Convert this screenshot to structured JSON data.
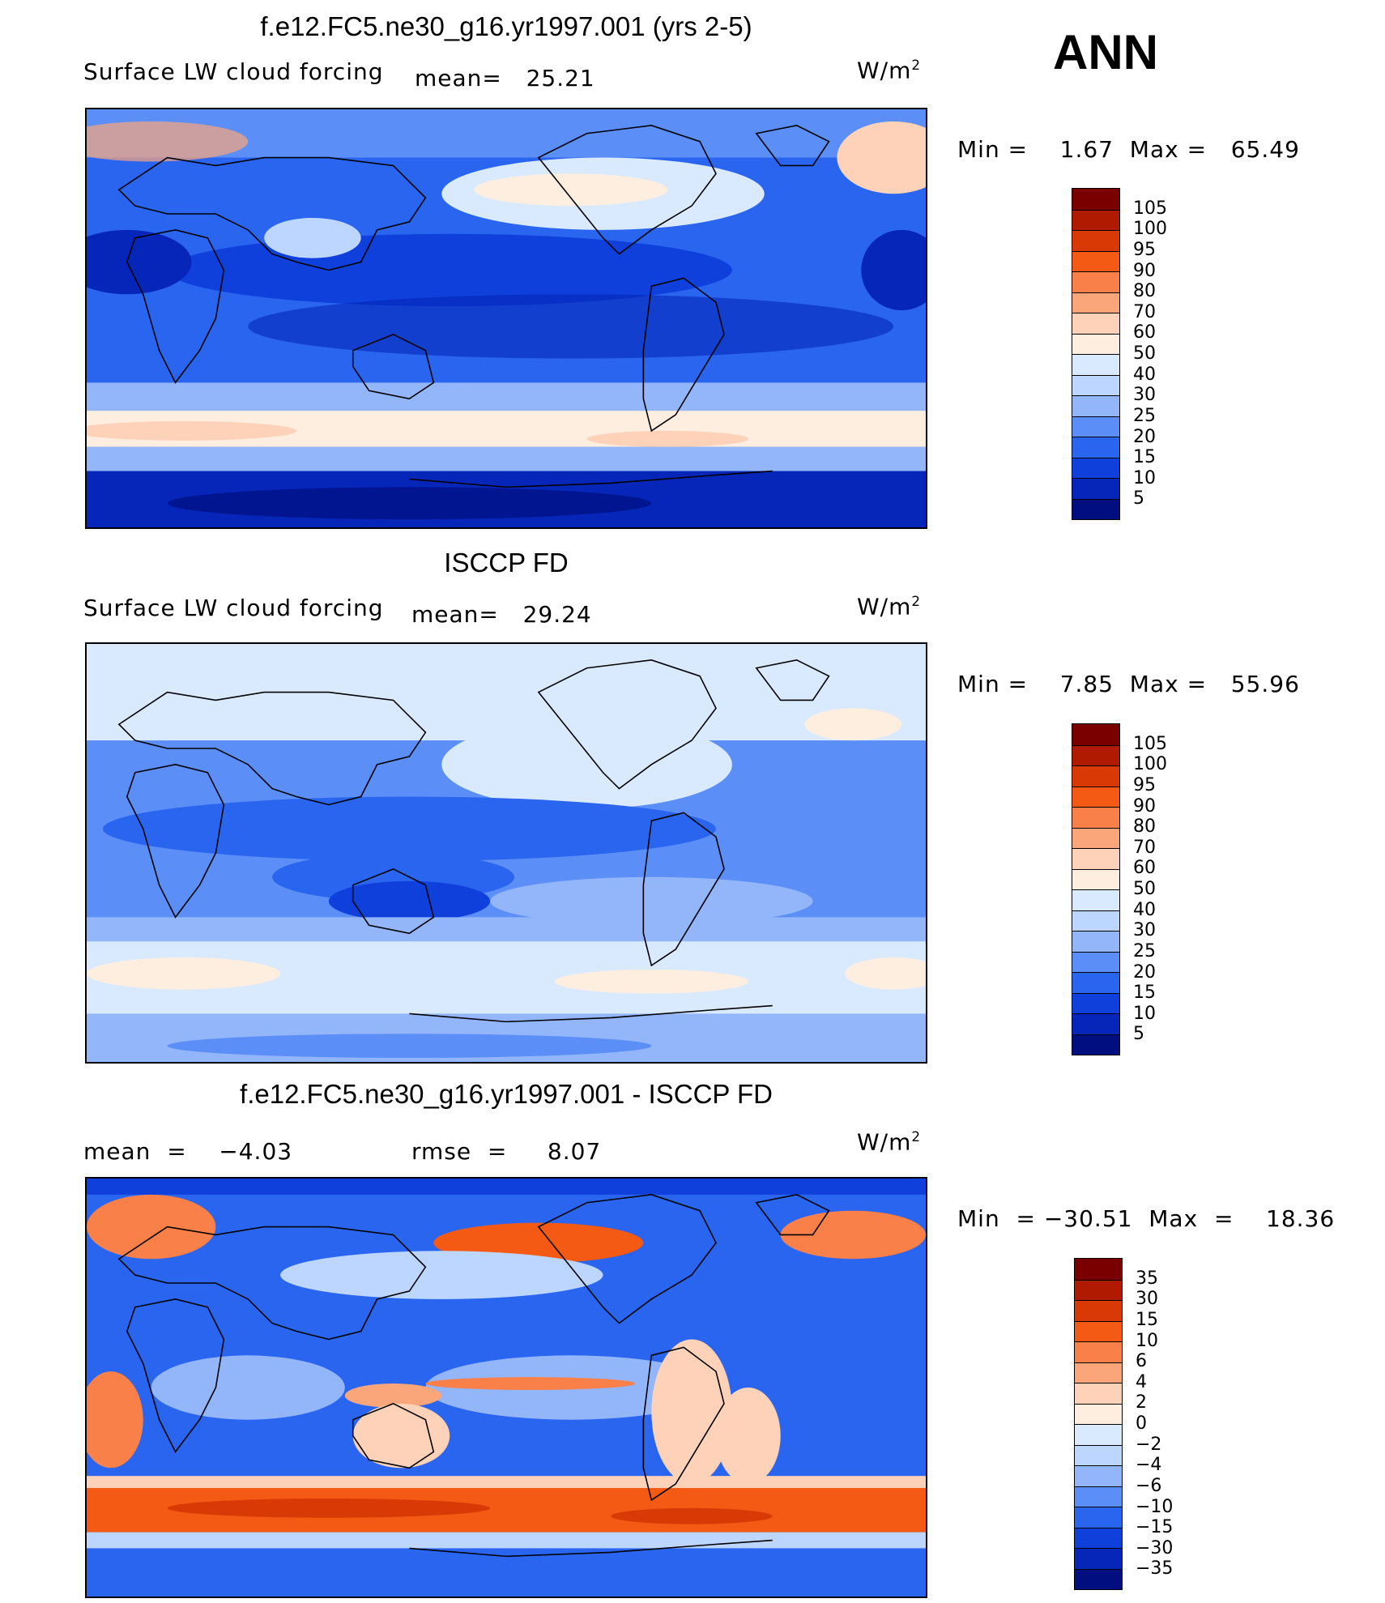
{
  "season": "ANN",
  "units_label": "W/m",
  "units_sup": "2",
  "panels": [
    {
      "title": "f.e12.FC5.ne30_g16.yr1997.001 (yrs 2-5)",
      "left_text": "Surface LW cloud forcing",
      "mean_text": "mean=   25.21",
      "minmax_text": "Min =    1.67  Max =   65.49",
      "colorbar_labels": [
        "105",
        "100",
        "95",
        "90",
        "80",
        "70",
        "60",
        "50",
        "40",
        "30",
        "25",
        "20",
        "15",
        "10",
        "5"
      ],
      "colors": [
        "#7a0000",
        "#b01a00",
        "#d93a05",
        "#f45a14",
        "#f98048",
        "#fba57b",
        "#fdd2b8",
        "#fdeee0",
        "#d9eaff",
        "#bcd6ff",
        "#93b6fb",
        "#5b8ef6",
        "#2a65f0",
        "#1040dc",
        "#0526b8",
        "#000e80"
      ]
    },
    {
      "title": "ISCCP FD",
      "left_text": "Surface LW cloud forcing",
      "mean_text": "mean=   29.24",
      "minmax_text": "Min =    7.85  Max =   55.96",
      "colorbar_labels": [
        "105",
        "100",
        "95",
        "90",
        "80",
        "70",
        "60",
        "50",
        "40",
        "30",
        "25",
        "20",
        "15",
        "10",
        "5"
      ],
      "colors": [
        "#7a0000",
        "#b01a00",
        "#d93a05",
        "#f45a14",
        "#f98048",
        "#fba57b",
        "#fdd2b8",
        "#fdeee0",
        "#d9eaff",
        "#bcd6ff",
        "#93b6fb",
        "#5b8ef6",
        "#2a65f0",
        "#1040dc",
        "#0526b8",
        "#000e80"
      ]
    },
    {
      "title": "f.e12.FC5.ne30_g16.yr1997.001 - ISCCP FD",
      "left_text": "mean  =    −4.03",
      "mean_text": "rmse  =     8.07",
      "minmax_text": "Min  = −30.51  Max  =    18.36",
      "colorbar_labels": [
        "35",
        "30",
        "15",
        "10",
        "6",
        "4",
        "2",
        "0",
        "−2",
        "−4",
        "−6",
        "−10",
        "−15",
        "−30",
        "−35"
      ],
      "colors": [
        "#7a0000",
        "#b01a00",
        "#d93a05",
        "#f45a14",
        "#f98048",
        "#fba57b",
        "#fdd2b8",
        "#fdeee0",
        "#d9eaff",
        "#bcd6ff",
        "#93b6fb",
        "#5b8ef6",
        "#2a65f0",
        "#1040dc",
        "#0526b8",
        "#000e80"
      ]
    }
  ]
}
